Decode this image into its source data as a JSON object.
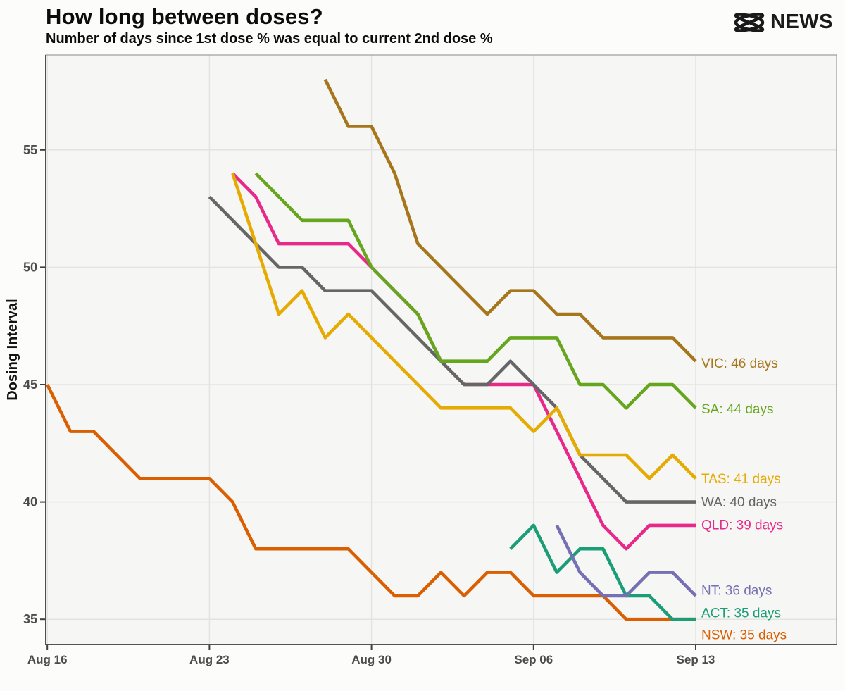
{
  "header": {
    "title": "How long between doses?",
    "subtitle": "Number of days since 1st dose % was equal to current 2nd dose %",
    "brand": "NEWS"
  },
  "colors": {
    "page_background": "#fcfcfb",
    "panel_background": "#f6f6f4",
    "grid": "#e4e3e1",
    "panel_border": "#9c9c9c",
    "axis": "#3f3f3f",
    "tick_text": "#4c4c4c",
    "heading_text": "#0c0c0c"
  },
  "chart_data": {
    "type": "line",
    "title": "How long between doses?",
    "subtitle": "Number of days since 1st dose % was equal to current 2nd dose %",
    "xlabel": "",
    "ylabel": "Dosing Interval",
    "grid": true,
    "legend_position": "right-of-line-end",
    "x_axis": {
      "unit": "date (daily points)",
      "start_date": "Aug 16",
      "end_date": "Sep 13",
      "tick_days": [
        0,
        7,
        14,
        21,
        28
      ],
      "tick_labels": [
        "Aug 16",
        "Aug 23",
        "Aug 30",
        "Sep 06",
        "Sep 13"
      ]
    },
    "y_axis": {
      "label": "Dosing Interval",
      "ticks": [
        35,
        40,
        45,
        50,
        55
      ],
      "range": [
        33.9,
        59.1
      ]
    },
    "series": [
      {
        "region": "NSW",
        "label": "NSW: 35 days",
        "color": "#d95f02",
        "start_day": 0,
        "values": [
          45,
          43,
          43,
          42,
          41,
          41,
          41,
          41,
          40,
          38,
          38,
          38,
          38,
          38,
          37,
          36,
          36,
          37,
          36,
          37,
          37,
          36,
          36,
          36,
          36,
          35,
          35,
          35,
          35
        ]
      },
      {
        "region": "QLD",
        "label": "QLD: 39 days",
        "color": "#e7298a",
        "start_day": 8,
        "values": [
          54,
          53,
          51,
          51,
          51,
          51,
          50,
          49,
          48,
          46,
          45,
          45,
          45,
          45,
          43,
          41,
          39,
          38,
          39,
          39,
          39
        ]
      },
      {
        "region": "WA",
        "label": "WA: 40 days",
        "color": "#666666",
        "start_day": 7,
        "values": [
          53,
          52,
          51,
          50,
          50,
          49,
          49,
          49,
          48,
          47,
          46,
          45,
          45,
          46,
          45,
          44,
          42,
          41,
          40,
          40,
          40,
          40
        ]
      },
      {
        "region": "TAS",
        "label": "TAS: 41 days",
        "color": "#e6ab02",
        "start_day": 8,
        "values": [
          54,
          51,
          48,
          49,
          47,
          48,
          47,
          46,
          45,
          44,
          44,
          44,
          44,
          43,
          44,
          42,
          42,
          42,
          41,
          42,
          41
        ]
      },
      {
        "region": "SA",
        "label": "SA: 44 days",
        "color": "#66a61e",
        "start_day": 9,
        "values": [
          54,
          53,
          52,
          52,
          52,
          50,
          49,
          48,
          46,
          46,
          46,
          47,
          47,
          47,
          45,
          45,
          44,
          45,
          45,
          44
        ]
      },
      {
        "region": "VIC",
        "label": "VIC: 46 days",
        "color": "#a6761d",
        "start_day": 12,
        "values": [
          58,
          56,
          56,
          54,
          51,
          50,
          49,
          48,
          49,
          49,
          48,
          48,
          47,
          47,
          47,
          47,
          46
        ]
      },
      {
        "region": "ACT",
        "label": "ACT: 35 days",
        "color": "#1b9e77",
        "start_day": 20,
        "values": [
          38,
          39,
          37,
          38,
          38,
          36,
          36,
          35,
          35
        ]
      },
      {
        "region": "NT",
        "label": "NT: 36 days",
        "color": "#7570b3",
        "start_day": 22,
        "values": [
          39,
          37,
          36,
          36,
          37,
          37,
          36
        ]
      }
    ]
  }
}
